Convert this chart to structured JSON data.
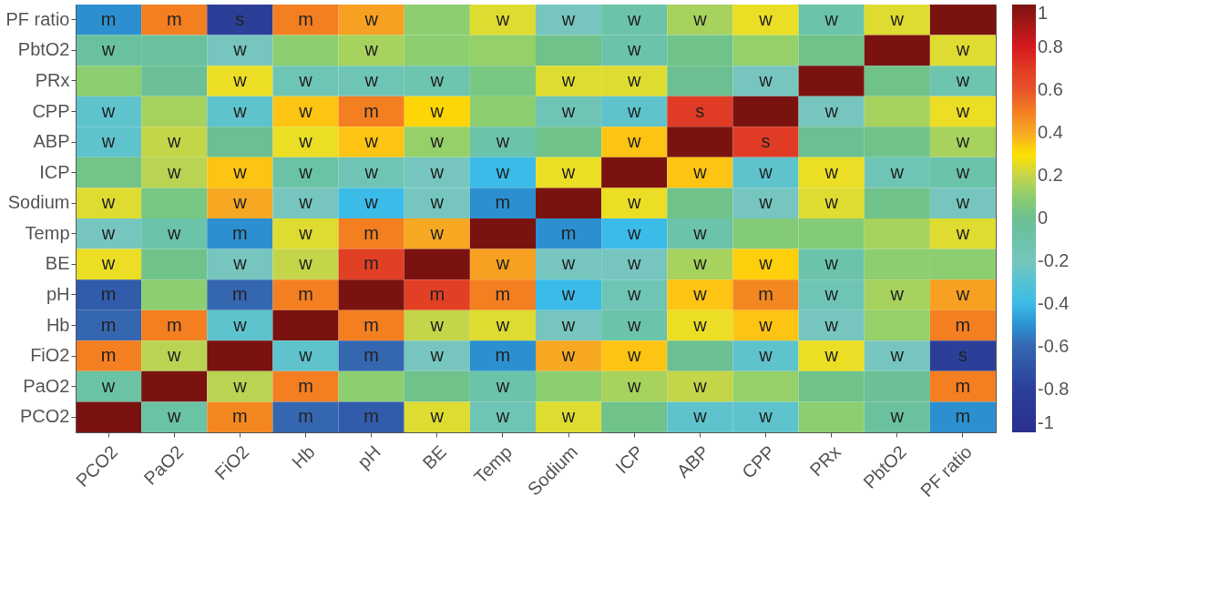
{
  "chart_data": {
    "type": "heatmap",
    "categories": [
      "PCO2",
      "PaO2",
      "FiO2",
      "Hb",
      "pH",
      "BE",
      "Temp",
      "Sodium",
      "ICP",
      "ABP",
      "CPP",
      "PRx",
      "PbtO2",
      "PF ratio"
    ],
    "y_categories": [
      "PF ratio",
      "PbtO2",
      "PRx",
      "CPP",
      "ABP",
      "ICP",
      "Sodium",
      "Temp",
      "BE",
      "pH",
      "Hb",
      "FiO2",
      "PaO2",
      "PCO2"
    ],
    "cells": [
      [
        -0.5,
        0.5,
        -0.8,
        0.5,
        0.42,
        0.1,
        0.25,
        -0.2,
        -0.1,
        0.15,
        0.27,
        -0.1,
        0.25,
        1
      ],
      [
        -0.05,
        -0.05,
        -0.2,
        0.1,
        0.15,
        0.1,
        0.12,
        0.02,
        -0.1,
        0.02,
        0.12,
        0.02,
        1,
        0.25
      ],
      [
        0.1,
        -0.03,
        0.27,
        -0.15,
        -0.15,
        -0.12,
        0.05,
        0.25,
        0.25,
        0.0,
        -0.2,
        1,
        0.02,
        -0.12
      ],
      [
        -0.27,
        0.15,
        -0.27,
        0.35,
        0.5,
        0.32,
        0.1,
        -0.15,
        -0.27,
        0.7,
        1,
        -0.2,
        0.15,
        0.27
      ],
      [
        -0.27,
        0.2,
        0.0,
        0.27,
        0.35,
        0.12,
        -0.1,
        0.02,
        0.35,
        1,
        0.7,
        0.0,
        0.02,
        0.15
      ],
      [
        0.03,
        0.18,
        0.35,
        -0.08,
        -0.15,
        -0.2,
        -0.4,
        0.27,
        1,
        0.35,
        -0.27,
        0.27,
        -0.15,
        -0.1
      ],
      [
        0.25,
        0.05,
        0.4,
        -0.2,
        -0.4,
        -0.2,
        -0.5,
        1,
        0.27,
        0.02,
        -0.2,
        0.25,
        0.02,
        -0.2
      ],
      [
        -0.2,
        -0.1,
        -0.5,
        0.25,
        0.5,
        0.4,
        1,
        -0.5,
        -0.4,
        -0.1,
        0.08,
        0.08,
        0.15,
        0.25
      ],
      [
        0.27,
        0.02,
        -0.2,
        0.2,
        0.68,
        1,
        0.42,
        -0.2,
        -0.2,
        0.15,
        0.33,
        -0.1,
        0.1,
        0.1
      ],
      [
        -0.65,
        0.1,
        -0.6,
        0.5,
        1,
        0.68,
        0.5,
        -0.4,
        -0.15,
        0.35,
        0.48,
        -0.15,
        0.15,
        0.42
      ],
      [
        -0.6,
        0.5,
        -0.27,
        1,
        0.5,
        0.2,
        0.25,
        -0.2,
        -0.1,
        0.27,
        0.35,
        -0.2,
        0.12,
        0.5
      ],
      [
        0.5,
        0.18,
        1,
        -0.27,
        -0.6,
        -0.2,
        -0.5,
        0.4,
        0.35,
        0.0,
        -0.27,
        0.27,
        -0.2,
        -0.8
      ],
      [
        -0.08,
        1,
        0.18,
        0.5,
        0.1,
        0.02,
        -0.1,
        0.1,
        0.15,
        0.2,
        0.12,
        0.02,
        -0.02,
        0.5
      ],
      [
        1,
        -0.08,
        0.48,
        -0.6,
        -0.65,
        0.25,
        -0.15,
        0.25,
        0.02,
        -0.27,
        -0.27,
        0.1,
        -0.05,
        -0.5
      ]
    ],
    "cell_labels": [
      [
        "m",
        "m",
        "s",
        "m",
        "w",
        null,
        "w",
        "w",
        "w",
        "w",
        "w",
        "w",
        "w",
        null
      ],
      [
        "w",
        null,
        "w",
        null,
        "w",
        null,
        null,
        null,
        "w",
        null,
        null,
        null,
        null,
        "w"
      ],
      [
        null,
        null,
        "w",
        "w",
        "w",
        "w",
        null,
        "w",
        "w",
        null,
        "w",
        null,
        null,
        "w"
      ],
      [
        "w",
        null,
        "w",
        "w",
        "m",
        "w",
        null,
        "w",
        "w",
        "s",
        null,
        "w",
        null,
        "w"
      ],
      [
        "w",
        "w",
        null,
        "w",
        "w",
        "w",
        "w",
        null,
        "w",
        null,
        "s",
        null,
        null,
        "w"
      ],
      [
        null,
        "w",
        "w",
        "w",
        "w",
        "w",
        "w",
        "w",
        null,
        "w",
        "w",
        "w",
        "w",
        "w"
      ],
      [
        "w",
        null,
        "w",
        "w",
        "w",
        "w",
        "m",
        null,
        "w",
        null,
        "w",
        "w",
        null,
        "w"
      ],
      [
        "w",
        "w",
        "m",
        "w",
        "m",
        "w",
        null,
        "m",
        "w",
        "w",
        null,
        null,
        null,
        "w"
      ],
      [
        "w",
        null,
        "w",
        "w",
        "m",
        null,
        "w",
        "w",
        "w",
        "w",
        "w",
        "w",
        null,
        null
      ],
      [
        "m",
        null,
        "m",
        "m",
        null,
        "m",
        "m",
        "w",
        "w",
        "w",
        "m",
        "w",
        "w",
        "w"
      ],
      [
        "m",
        "m",
        "w",
        null,
        "m",
        "w",
        "w",
        "w",
        "w",
        "w",
        "w",
        "w",
        null,
        "m"
      ],
      [
        "m",
        "w",
        null,
        "w",
        "m",
        "w",
        "m",
        "w",
        "w",
        null,
        "w",
        "w",
        "w",
        "s"
      ],
      [
        "w",
        null,
        "w",
        "m",
        null,
        null,
        "w",
        null,
        "w",
        "w",
        null,
        null,
        null,
        "m"
      ],
      [
        null,
        "w",
        "m",
        "m",
        "m",
        "w",
        "w",
        "w",
        null,
        "w",
        "w",
        null,
        "w",
        "m"
      ]
    ],
    "clim": [
      -1,
      1
    ],
    "cticks": [
      -1,
      -0.8,
      -0.6,
      -0.4,
      -0.2,
      0,
      0.2,
      0.4,
      0.6,
      0.8,
      1
    ]
  }
}
